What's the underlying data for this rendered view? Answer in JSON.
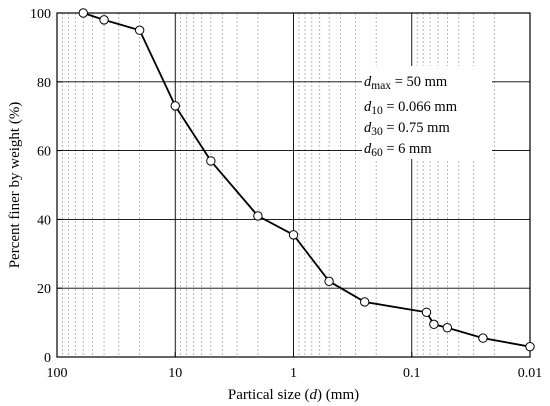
{
  "chart_data": {
    "type": "line",
    "x_scale": "log",
    "x_reversed": true,
    "xlim": [
      100,
      0.01
    ],
    "ylim": [
      0,
      100
    ],
    "xlabel": {
      "prefix": "Partical size (",
      "var": "d",
      "suffix": ") (mm)"
    },
    "ylabel": "Percent finer by weight (%)",
    "x_ticks": [
      {
        "value": 100,
        "label": "100"
      },
      {
        "value": 10,
        "label": "10"
      },
      {
        "value": 1,
        "label": "1"
      },
      {
        "value": 0.1,
        "label": "0.1"
      },
      {
        "value": 0.01,
        "label": "0.01"
      }
    ],
    "y_ticks": [
      {
        "value": 0,
        "label": "0"
      },
      {
        "value": 20,
        "label": "20"
      },
      {
        "value": 40,
        "label": "40"
      },
      {
        "value": 60,
        "label": "60"
      },
      {
        "value": 80,
        "label": "80"
      },
      {
        "value": 100,
        "label": "100"
      }
    ],
    "grid": {
      "major": true,
      "minor_x_dashed": true
    },
    "legend": null,
    "series": [
      {
        "x": [
          60,
          40,
          20,
          10,
          5,
          2,
          1,
          0.5,
          0.25,
          0.075,
          0.065,
          0.05,
          0.025,
          0.01
        ],
        "y": [
          100,
          98,
          95,
          73,
          57,
          41,
          35.5,
          22,
          16,
          13,
          9.5,
          8.5,
          5.5,
          3
        ]
      }
    ],
    "annotations": [
      {
        "var": "d",
        "sub": "max",
        "text": " = 50 mm"
      },
      {
        "var": "d",
        "sub": "10",
        "text": " = 0.066 mm"
      },
      {
        "var": "d",
        "sub": "30",
        "text": " = 0.75 mm"
      },
      {
        "var": "d",
        "sub": "60",
        "text": " = 6 mm"
      }
    ],
    "colors": {
      "line": "#000000",
      "marker_fill": "#ffffff",
      "grid": "#000000",
      "minor_grid": "#9a9a9a"
    }
  }
}
